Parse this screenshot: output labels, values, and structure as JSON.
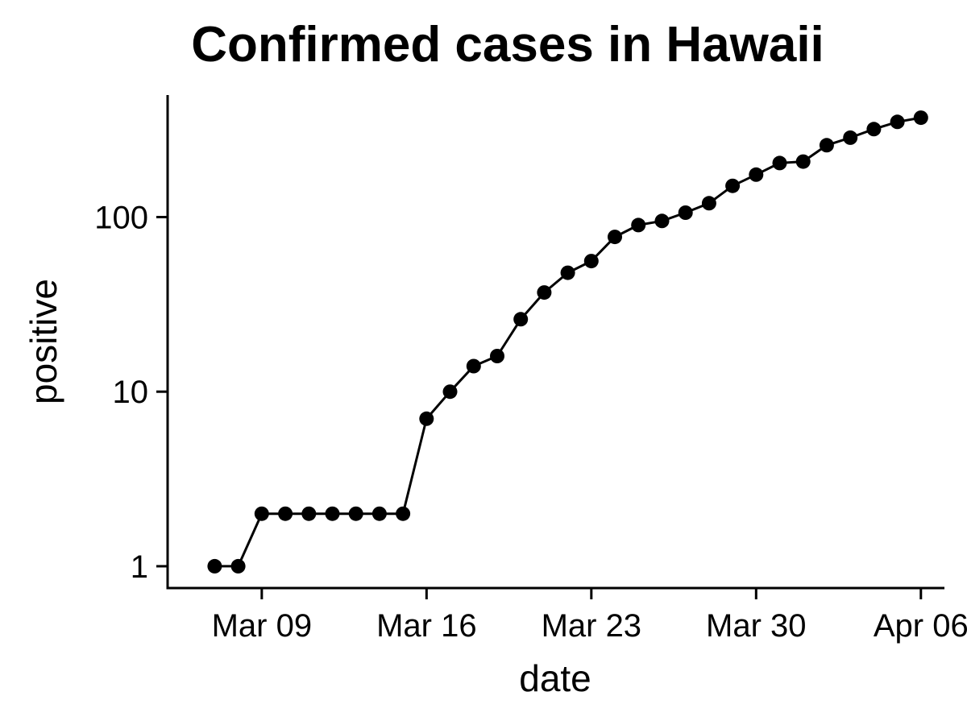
{
  "chart_data": {
    "type": "line",
    "title": "Confirmed cases in Hawaii",
    "xlabel": "date",
    "ylabel": "positive",
    "y_scale": "log10",
    "ylim": [
      0.75,
      500
    ],
    "xlim": [
      "2020-03-05",
      "2020-04-07"
    ],
    "x_ticks": [
      "2020-03-09",
      "2020-03-16",
      "2020-03-23",
      "2020-03-30",
      "2020-04-06"
    ],
    "x_tick_labels": [
      "Mar 09",
      "Mar 16",
      "Mar 23",
      "Mar 30",
      "Apr 06"
    ],
    "y_ticks": [
      1,
      10,
      100
    ],
    "y_tick_labels": [
      "1",
      "10",
      "100"
    ],
    "grid": false,
    "legend": "none",
    "series": [
      {
        "color": "#000000",
        "points": [
          {
            "x": "2020-03-07",
            "y": 1
          },
          {
            "x": "2020-03-08",
            "y": 1
          },
          {
            "x": "2020-03-09",
            "y": 2
          },
          {
            "x": "2020-03-10",
            "y": 2
          },
          {
            "x": "2020-03-11",
            "y": 2
          },
          {
            "x": "2020-03-12",
            "y": 2
          },
          {
            "x": "2020-03-13",
            "y": 2
          },
          {
            "x": "2020-03-14",
            "y": 2
          },
          {
            "x": "2020-03-15",
            "y": 2
          },
          {
            "x": "2020-03-16",
            "y": 7
          },
          {
            "x": "2020-03-17",
            "y": 10
          },
          {
            "x": "2020-03-18",
            "y": 14
          },
          {
            "x": "2020-03-19",
            "y": 16
          },
          {
            "x": "2020-03-20",
            "y": 26
          },
          {
            "x": "2020-03-21",
            "y": 37
          },
          {
            "x": "2020-03-22",
            "y": 48
          },
          {
            "x": "2020-03-23",
            "y": 56
          },
          {
            "x": "2020-03-24",
            "y": 77
          },
          {
            "x": "2020-03-25",
            "y": 90
          },
          {
            "x": "2020-03-26",
            "y": 95
          },
          {
            "x": "2020-03-27",
            "y": 106
          },
          {
            "x": "2020-03-28",
            "y": 120
          },
          {
            "x": "2020-03-29",
            "y": 151
          },
          {
            "x": "2020-03-30",
            "y": 175
          },
          {
            "x": "2020-03-31",
            "y": 204
          },
          {
            "x": "2020-04-01",
            "y": 208
          },
          {
            "x": "2020-04-02",
            "y": 258
          },
          {
            "x": "2020-04-03",
            "y": 285
          },
          {
            "x": "2020-04-04",
            "y": 319
          },
          {
            "x": "2020-04-05",
            "y": 351
          },
          {
            "x": "2020-04-06",
            "y": 371
          }
        ]
      }
    ]
  }
}
